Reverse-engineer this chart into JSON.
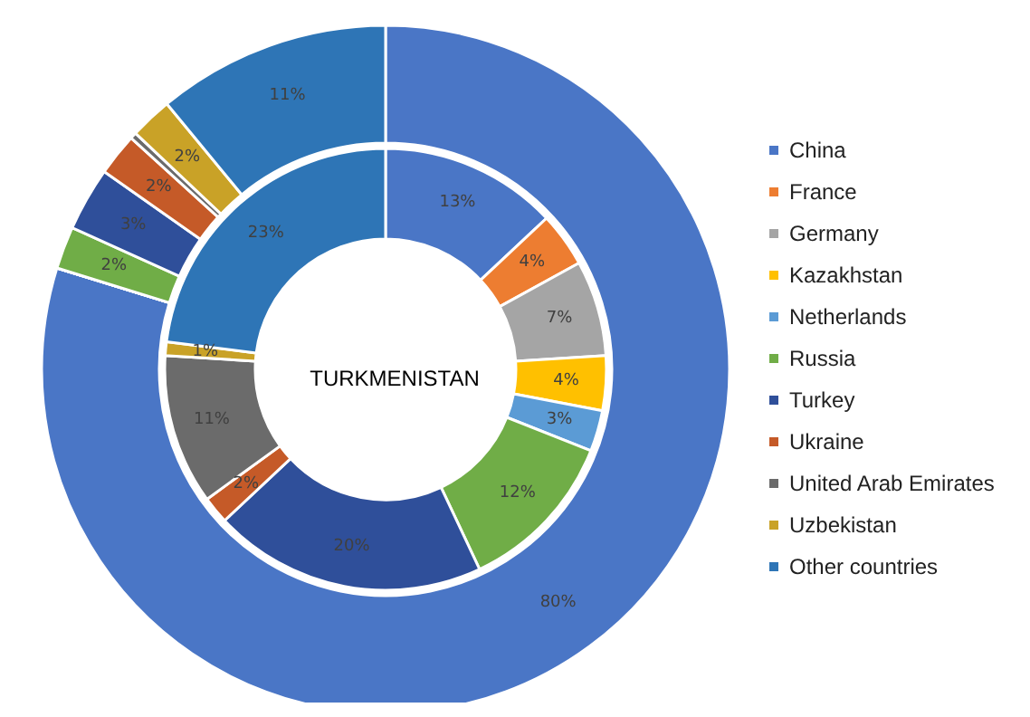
{
  "chart_data": {
    "type": "donut",
    "title": "TURKMENISTAN",
    "categories": [
      "China",
      "France",
      "Germany",
      "Kazakhstan",
      "Netherlands",
      "Russia",
      "Turkey",
      "Ukraine",
      "United Arab Emirates",
      "Uzbekistan",
      "Other countries"
    ],
    "colors": [
      "#4a76c6",
      "#ed7d31",
      "#a5a5a5",
      "#ffc000",
      "#5b9bd5",
      "#70ad47",
      "#2f4f9a",
      "#c55a28",
      "#6b6b6b",
      "#c9a227",
      "#2e75b6"
    ],
    "series": [
      {
        "values": [
          13,
          4,
          7,
          4,
          3,
          12,
          20,
          2,
          11,
          1,
          23
        ],
        "value_labels": [
          "13%",
          "4%",
          "7%",
          "4%",
          "3%",
          "12%",
          "20%",
          "2%",
          "11%",
          "1%",
          "23%"
        ]
      },
      {
        "values": [
          80,
          0,
          0,
          0,
          0,
          2,
          3,
          2,
          0.3,
          2,
          11
        ],
        "value_labels": [
          "80%",
          null,
          null,
          null,
          null,
          "2%",
          "3%",
          "2%",
          null,
          "2%",
          "11%"
        ]
      }
    ],
    "legend": "right"
  }
}
